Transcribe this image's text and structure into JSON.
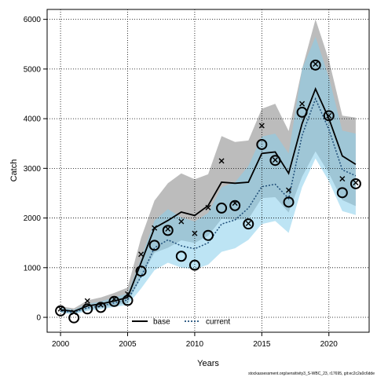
{
  "chart_data": {
    "type": "line",
    "xlabel": "Years",
    "ylabel": "Catch",
    "xlim": [
      1999,
      2023
    ],
    "ylim": [
      -300,
      6200
    ],
    "x_ticks": [
      2000,
      2005,
      2010,
      2015,
      2020
    ],
    "y_ticks": [
      0,
      1000,
      2000,
      3000,
      4000,
      5000,
      6000
    ],
    "grid": true,
    "grid_style": "dotted",
    "legend_position": "bottom-center",
    "x": [
      2000,
      2001,
      2002,
      2003,
      2004,
      2005,
      2006,
      2007,
      2008,
      2009,
      2010,
      2011,
      2012,
      2013,
      2014,
      2015,
      2016,
      2017,
      2018,
      2019,
      2020,
      2021,
      2022
    ],
    "series": [
      {
        "name": "base",
        "style": "solid",
        "color": "#000000",
        "values": [
          150,
          120,
          230,
          270,
          330,
          400,
          1100,
          1800,
          1950,
          2120,
          2050,
          2250,
          2720,
          2700,
          2720,
          3300,
          3330,
          2900,
          3900,
          4600,
          4000,
          3250,
          3080
        ],
        "lower": [
          100,
          80,
          160,
          190,
          240,
          290,
          800,
          1300,
          1400,
          1550,
          1500,
          1640,
          1980,
          1960,
          1980,
          2400,
          2420,
          2110,
          2830,
          3340,
          2900,
          2360,
          2240
        ],
        "upper": [
          220,
          180,
          340,
          400,
          490,
          600,
          1600,
          2350,
          2700,
          2900,
          2780,
          2880,
          3650,
          3530,
          3560,
          4200,
          4300,
          3750,
          5000,
          6000,
          5180,
          4060,
          4020
        ]
      },
      {
        "name": "current",
        "style": "dotted",
        "color": "#1f4e79",
        "values": [
          130,
          100,
          190,
          230,
          290,
          350,
          820,
          1400,
          1560,
          1440,
          1380,
          1500,
          1880,
          1960,
          2200,
          2630,
          2680,
          2390,
          3660,
          4400,
          3780,
          2970,
          2850
        ],
        "lower": [
          90,
          60,
          130,
          160,
          210,
          250,
          580,
          950,
          1100,
          1000,
          970,
          1060,
          1320,
          1390,
          1560,
          1880,
          1940,
          1700,
          2620,
          3200,
          2740,
          2140,
          2060
        ],
        "upper": [
          190,
          150,
          270,
          320,
          400,
          480,
          1180,
          1950,
          2180,
          2010,
          1930,
          2100,
          2620,
          2720,
          3050,
          3640,
          3700,
          3300,
          5000,
          5650,
          4830,
          3760,
          3700
        ]
      }
    ],
    "observed": {
      "marker": "circle",
      "x": [
        2000,
        2001,
        2002,
        2003,
        2004,
        2005,
        2006,
        2007,
        2008,
        2009,
        2010,
        2011,
        2012,
        2013,
        2014,
        2015,
        2016,
        2017,
        2018,
        2019,
        2020,
        2021,
        2022
      ],
      "y": [
        130,
        -10,
        170,
        200,
        320,
        340,
        930,
        1450,
        1750,
        1230,
        1050,
        1650,
        2200,
        2250,
        1880,
        3480,
        3160,
        2320,
        4130,
        5080,
        4060,
        2510,
        2690
      ]
    },
    "expected": {
      "marker": "x",
      "x": [
        2000,
        2001,
        2002,
        2003,
        2004,
        2005,
        2006,
        2007,
        2008,
        2009,
        2010,
        2011,
        2012,
        2013,
        2014,
        2015,
        2016,
        2017,
        2018,
        2019,
        2020,
        2021,
        2022
      ],
      "y": [
        170,
        100,
        330,
        250,
        370,
        470,
        1270,
        1800,
        1780,
        1930,
        1690,
        2210,
        3150,
        2300,
        1890,
        3860,
        3170,
        2560,
        4300,
        5100,
        4060,
        2790,
        2710
      ]
    },
    "footnote": "stockassessment.org/sensitivity3_S-WBC_23, r17695, git:ec2c2a0c6dde"
  },
  "colors": {
    "base_band": "#a6a6a6",
    "current_band": "#87ceeb"
  }
}
